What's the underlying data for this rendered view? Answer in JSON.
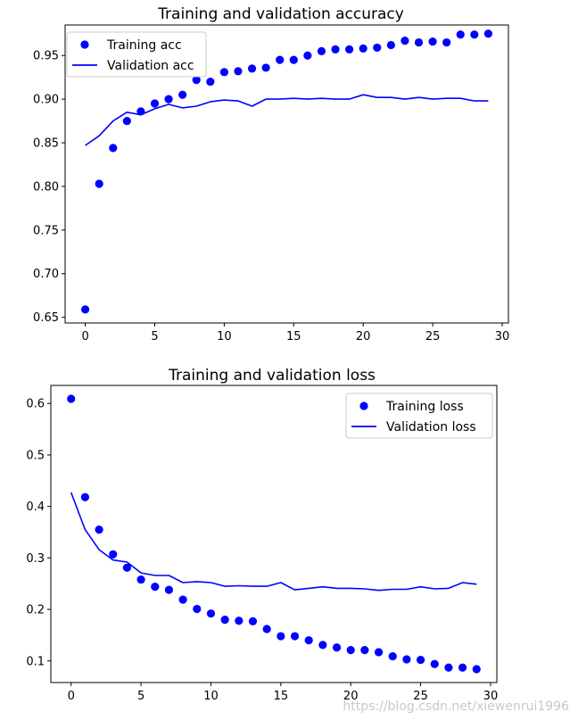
{
  "chart_data": [
    {
      "type": "line",
      "title": "Training and validation accuracy",
      "xlabel": "",
      "ylabel": "",
      "xlim": [
        -1.45,
        30.45
      ],
      "ylim": [
        0.6435,
        0.985
      ],
      "x_ticks": [
        0,
        5,
        10,
        15,
        20,
        25,
        30
      ],
      "y_ticks": [
        0.65,
        0.7,
        0.75,
        0.8,
        0.85,
        0.9,
        0.95
      ],
      "grid": false,
      "legend_position": "top-left",
      "series": [
        {
          "name": "Training acc",
          "style": "dots",
          "color": "#0000ff",
          "x": [
            0,
            1,
            2,
            3,
            4,
            5,
            6,
            7,
            8,
            9,
            10,
            11,
            12,
            13,
            14,
            15,
            16,
            17,
            18,
            19,
            20,
            21,
            22,
            23,
            24,
            25,
            26,
            27,
            28,
            29
          ],
          "y": [
            0.659,
            0.803,
            0.844,
            0.875,
            0.886,
            0.895,
            0.9,
            0.905,
            0.922,
            0.92,
            0.931,
            0.932,
            0.935,
            0.936,
            0.945,
            0.945,
            0.95,
            0.955,
            0.957,
            0.957,
            0.958,
            0.959,
            0.962,
            0.967,
            0.965,
            0.966,
            0.965,
            0.974,
            0.974,
            0.975
          ]
        },
        {
          "name": "Validation acc",
          "style": "line",
          "color": "#0000ff",
          "x": [
            0,
            1,
            2,
            3,
            4,
            5,
            6,
            7,
            8,
            9,
            10,
            11,
            12,
            13,
            14,
            15,
            16,
            17,
            18,
            19,
            20,
            21,
            22,
            23,
            24,
            25,
            26,
            27,
            28,
            29
          ],
          "y": [
            0.847,
            0.858,
            0.875,
            0.885,
            0.882,
            0.889,
            0.894,
            0.89,
            0.892,
            0.897,
            0.899,
            0.898,
            0.892,
            0.9,
            0.9,
            0.901,
            0.9,
            0.901,
            0.9,
            0.9,
            0.905,
            0.902,
            0.902,
            0.9,
            0.902,
            0.9,
            0.901,
            0.901,
            0.898,
            0.898
          ]
        }
      ]
    },
    {
      "type": "line",
      "title": "Training and validation loss",
      "xlabel": "",
      "ylabel": "",
      "xlim": [
        -1.45,
        30.45
      ],
      "ylim": [
        0.058,
        0.635
      ],
      "x_ticks": [
        0,
        5,
        10,
        15,
        20,
        25,
        30
      ],
      "y_ticks": [
        0.1,
        0.2,
        0.3,
        0.4,
        0.5,
        0.6
      ],
      "grid": false,
      "legend_position": "top-right",
      "series": [
        {
          "name": "Training loss",
          "style": "dots",
          "color": "#0000ff",
          "x": [
            0,
            1,
            2,
            3,
            4,
            5,
            6,
            7,
            8,
            9,
            10,
            11,
            12,
            13,
            14,
            15,
            16,
            17,
            18,
            19,
            20,
            21,
            22,
            23,
            24,
            25,
            26,
            27,
            28,
            29
          ],
          "y": [
            0.609,
            0.418,
            0.355,
            0.307,
            0.281,
            0.258,
            0.244,
            0.238,
            0.219,
            0.201,
            0.192,
            0.18,
            0.178,
            0.177,
            0.162,
            0.148,
            0.148,
            0.14,
            0.131,
            0.126,
            0.121,
            0.121,
            0.117,
            0.109,
            0.103,
            0.102,
            0.094,
            0.087,
            0.087,
            0.084
          ]
        },
        {
          "name": "Validation loss",
          "style": "line",
          "color": "#0000ff",
          "x": [
            0,
            1,
            2,
            3,
            4,
            5,
            6,
            7,
            8,
            9,
            10,
            11,
            12,
            13,
            14,
            15,
            16,
            17,
            18,
            19,
            20,
            21,
            22,
            23,
            24,
            25,
            26,
            27,
            28,
            29
          ],
          "y": [
            0.427,
            0.355,
            0.316,
            0.296,
            0.292,
            0.271,
            0.266,
            0.266,
            0.252,
            0.254,
            0.252,
            0.245,
            0.246,
            0.245,
            0.245,
            0.252,
            0.238,
            0.241,
            0.244,
            0.241,
            0.241,
            0.24,
            0.237,
            0.239,
            0.239,
            0.244,
            0.24,
            0.241,
            0.252,
            0.249
          ]
        }
      ]
    }
  ],
  "watermark": "https://blog.csdn.net/xiewenrui1996"
}
